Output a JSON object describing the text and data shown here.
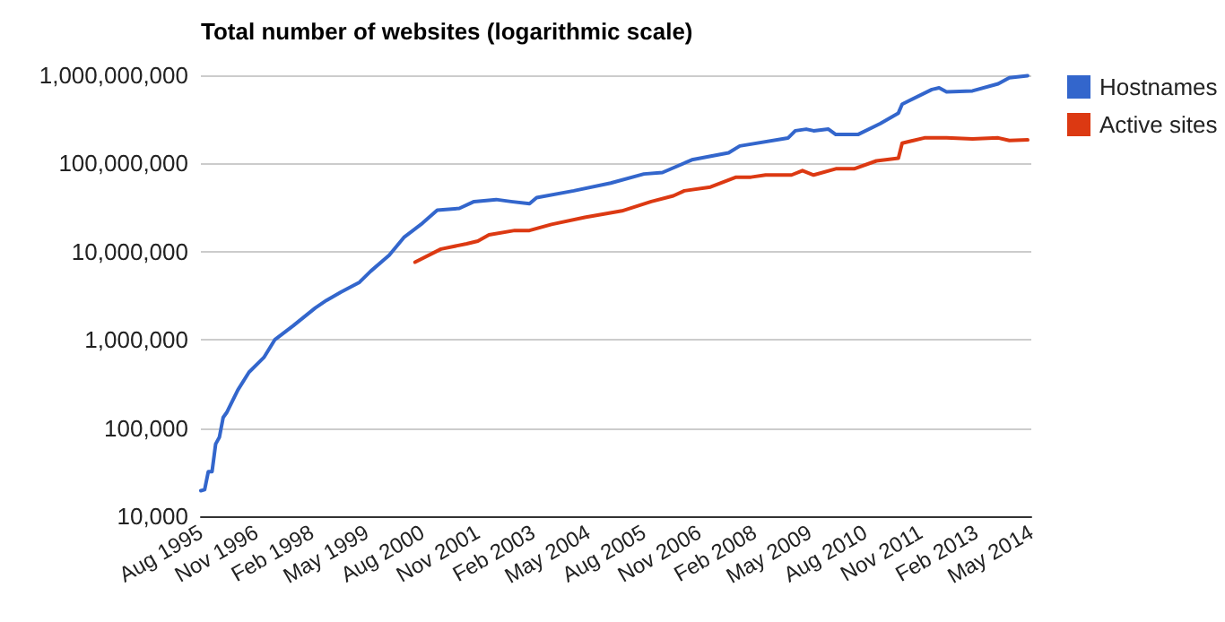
{
  "chart_data": {
    "type": "line",
    "title": "Total number of websites (logarithmic scale)",
    "series": [
      {
        "name": "Hostnames",
        "color": "#3366cc",
        "x": [
          "1995-08",
          "1995-09",
          "1995-10",
          "1995-11",
          "1995-12",
          "1996-01",
          "1996-02",
          "1996-03",
          "1996-06",
          "1996-09",
          "1997-01",
          "1997-04",
          "1997-09",
          "1998-03",
          "1998-06",
          "1998-10",
          "1999-03",
          "1999-06",
          "1999-11",
          "2000-03",
          "2000-08",
          "2000-12",
          "2001-06",
          "2001-10",
          "2002-04",
          "2002-08",
          "2003-01",
          "2003-03",
          "2004-01",
          "2004-11",
          "2005-08",
          "2006-01",
          "2006-09",
          "2007-07",
          "2007-10",
          "2008-11",
          "2009-01",
          "2009-04",
          "2009-06",
          "2009-10",
          "2009-12",
          "2010-06",
          "2010-12",
          "2011-05",
          "2011-06",
          "2012-02",
          "2012-04",
          "2012-06",
          "2013-01",
          "2013-08",
          "2013-11",
          "2014-04"
        ],
        "values": [
          19500,
          20000,
          32000,
          32000,
          66000,
          79000,
          132000,
          150000,
          270000,
          430000,
          630000,
          1000000,
          1450000,
          2300000,
          2800000,
          3500000,
          4500000,
          6000000,
          9100000,
          14500000,
          21000000,
          29500000,
          31000000,
          37000000,
          39000000,
          37000000,
          35000000,
          41000000,
          49000000,
          60000000,
          76000000,
          79000000,
          110000000,
          132000000,
          158000000,
          194000000,
          235000000,
          245000000,
          235000000,
          245000000,
          213000000,
          213000000,
          283000000,
          373000000,
          470000000,
          690000000,
          720000000,
          650000000,
          665000000,
          800000000,
          940000000,
          990000000
        ]
      },
      {
        "name": "Active sites",
        "color": "#dc3912",
        "x": [
          "2000-06",
          "2001-01",
          "2001-08",
          "2001-11",
          "2002-02",
          "2002-09",
          "2003-01",
          "2003-07",
          "2004-04",
          "2005-02",
          "2005-10",
          "2006-04",
          "2006-07",
          "2007-02",
          "2007-09",
          "2008-01",
          "2008-05",
          "2008-12",
          "2009-03",
          "2009-06",
          "2009-12",
          "2010-05",
          "2010-11",
          "2011-05",
          "2011-06",
          "2011-12",
          "2012-06",
          "2013-01",
          "2013-08",
          "2013-11",
          "2014-04"
        ],
        "values": [
          7600000,
          10700000,
          12300000,
          13200000,
          15500000,
          17400000,
          17400000,
          20400000,
          24500000,
          29000000,
          37000000,
          43000000,
          49000000,
          54000000,
          70000000,
          70000000,
          74000000,
          74000000,
          83000000,
          74000000,
          87000000,
          87000000,
          107000000,
          115000000,
          170000000,
          195000000,
          196000000,
          190000000,
          195000000,
          182000000,
          185000000
        ]
      }
    ],
    "log": "y",
    "ylim": [
      10000,
      1000000000
    ],
    "yticks": [
      {
        "value": 10000,
        "label": "10,000"
      },
      {
        "value": 100000,
        "label": "100,000"
      },
      {
        "value": 1000000,
        "label": "1,000,000"
      },
      {
        "value": 10000000,
        "label": "10,000,000"
      },
      {
        "value": 100000000,
        "label": "100,000,000"
      },
      {
        "value": 1000000000,
        "label": "1,000,000,000"
      }
    ],
    "xlim": [
      "1995-08",
      "2014-05"
    ],
    "xticks": [
      {
        "value": "1995-08",
        "label": "Aug 1995"
      },
      {
        "value": "1996-11",
        "label": "Nov 1996"
      },
      {
        "value": "1998-02",
        "label": "Feb 1998"
      },
      {
        "value": "1999-05",
        "label": "May 1999"
      },
      {
        "value": "2000-08",
        "label": "Aug 2000"
      },
      {
        "value": "2001-11",
        "label": "Nov 2001"
      },
      {
        "value": "2003-02",
        "label": "Feb 2003"
      },
      {
        "value": "2004-05",
        "label": "May 2004"
      },
      {
        "value": "2005-08",
        "label": "Aug 2005"
      },
      {
        "value": "2006-11",
        "label": "Nov 2006"
      },
      {
        "value": "2008-02",
        "label": "Feb 2008"
      },
      {
        "value": "2009-05",
        "label": "May 2009"
      },
      {
        "value": "2010-08",
        "label": "Aug 2010"
      },
      {
        "value": "2011-11",
        "label": "Nov 2011"
      },
      {
        "value": "2013-02",
        "label": "Feb 2013"
      },
      {
        "value": "2014-05",
        "label": "May 2014"
      }
    ],
    "grid": "y",
    "legend": "right",
    "marker": "none",
    "line_style": "solid"
  }
}
